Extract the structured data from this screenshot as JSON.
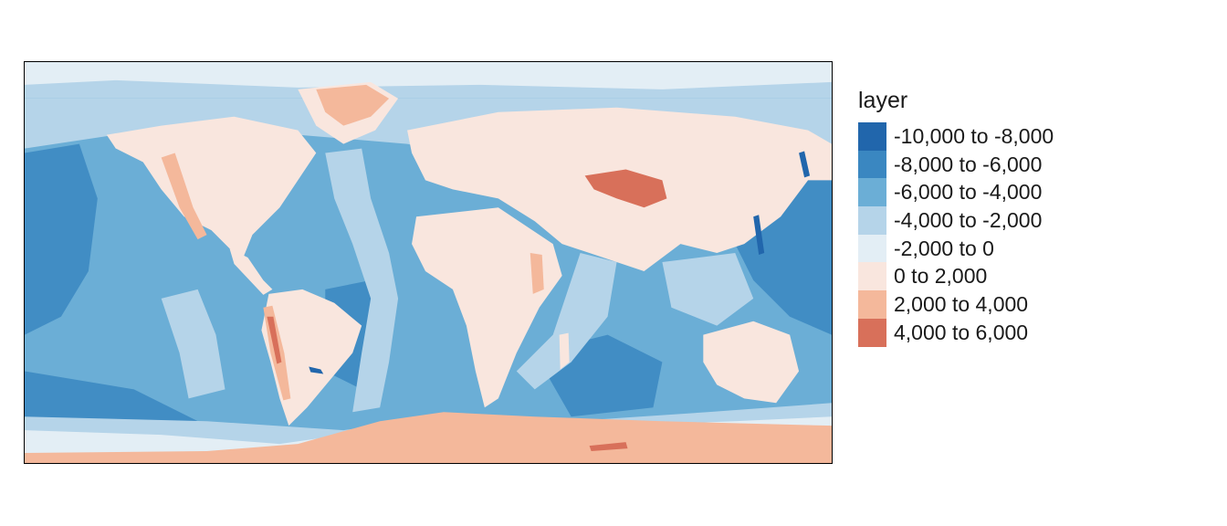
{
  "legend": {
    "title": "layer",
    "classes": [
      {
        "label": "-10,000 to -8,000",
        "color": "#2166ac"
      },
      {
        "label": "-8,000 to -6,000",
        "color": "#3a87c1"
      },
      {
        "label": "-6,000 to -4,000",
        "color": "#6baed6"
      },
      {
        "label": "-4,000 to -2,000",
        "color": "#b5d4e9"
      },
      {
        "label": "-2,000 to 0",
        "color": "#e3eef5"
      },
      {
        "label": "0 to 2,000",
        "color": "#f9e6de"
      },
      {
        "label": "2,000 to 4,000",
        "color": "#f4b89b"
      },
      {
        "label": "4,000 to 6,000",
        "color": "#d8705a"
      }
    ]
  },
  "map": {
    "projection": "equirectangular",
    "extent": {
      "lon": [
        -180,
        180
      ],
      "lat": [
        -90,
        90
      ]
    },
    "background_class": 2
  }
}
